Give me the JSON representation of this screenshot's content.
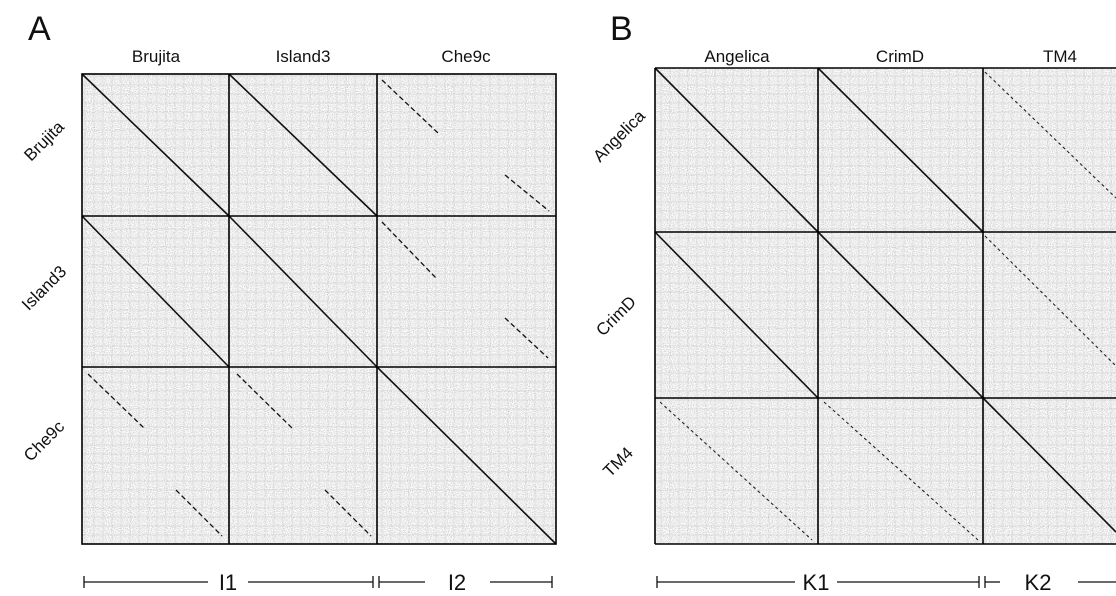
{
  "panels": [
    {
      "letter": "A",
      "genomes": [
        "Brujita",
        "Island3",
        "Che9c"
      ],
      "clusters": [
        "I1",
        "I2"
      ]
    },
    {
      "letter": "B",
      "genomes": [
        "Angelica",
        "CrimD",
        "TM4"
      ],
      "clusters": [
        "K1",
        "K2"
      ]
    }
  ]
}
